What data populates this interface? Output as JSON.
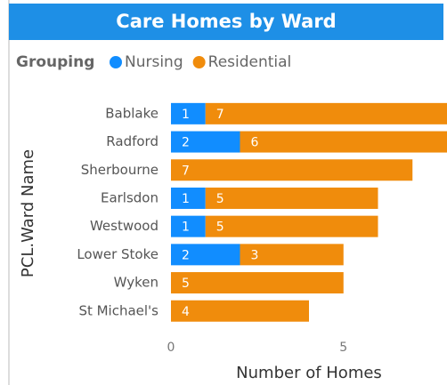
{
  "chart_data": {
    "type": "bar",
    "orientation": "horizontal",
    "stacked": true,
    "title": "Care Homes by Ward",
    "legend_title": "Grouping",
    "categories": [
      "Bablake",
      "Radford",
      "Sherbourne",
      "Earlsdon",
      "Westwood",
      "Lower Stoke",
      "Wyken",
      "St Michael's"
    ],
    "series": [
      {
        "name": "Nursing",
        "color": "#118dff",
        "values": [
          1,
          2,
          null,
          1,
          1,
          2,
          null,
          null
        ]
      },
      {
        "name": "Residential",
        "color": "#f08c0c",
        "values": [
          7,
          6,
          7,
          5,
          5,
          3,
          5,
          4
        ]
      }
    ],
    "xlabel": "Number of Homes",
    "ylabel": "PCL.Ward Name",
    "xlim": [
      0,
      8
    ],
    "xticks": [
      0,
      5
    ]
  }
}
